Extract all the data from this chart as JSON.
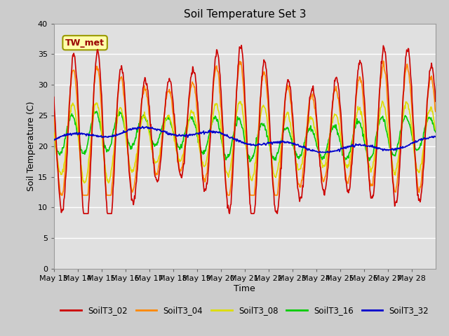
{
  "title": "Soil Temperature Set 3",
  "xlabel": "Time",
  "ylabel": "Soil Temperature (C)",
  "ylim": [
    0,
    40
  ],
  "yticks": [
    0,
    5,
    10,
    15,
    20,
    25,
    30,
    35,
    40
  ],
  "colors": {
    "SoilT3_02": "#cc0000",
    "SoilT3_04": "#ff8800",
    "SoilT3_08": "#dddd00",
    "SoilT3_16": "#00cc00",
    "SoilT3_32": "#0000cc"
  },
  "annotation_text": "TW_met",
  "annotation_color": "#990000",
  "annotation_bg": "#ffffaa",
  "annotation_edge": "#999900",
  "bg_color": "#cccccc",
  "plot_bg": "#e0e0e0",
  "linewidth": 1.2,
  "tick_labels": [
    "May 13",
    "May 14",
    "May 15",
    "May 16",
    "May 17",
    "May 18",
    "May 19",
    "May 20",
    "May 21",
    "May 22",
    "May 23",
    "May 24",
    "May 25",
    "May 26",
    "May 27",
    "May 28"
  ]
}
